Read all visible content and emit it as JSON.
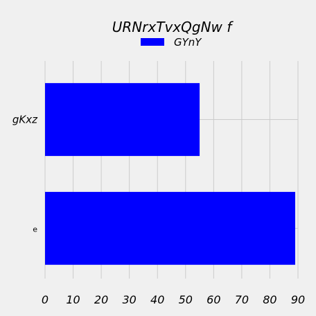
{
  "chart_data": {
    "type": "bar",
    "orientation": "horizontal",
    "title": "URNrxTvxQgNw f",
    "categories": [
      "gKxz",
      "e"
    ],
    "series": [
      {
        "name": "GYnY",
        "values": [
          55,
          89
        ],
        "color": "#0000ff"
      }
    ],
    "xlim": [
      0,
      90
    ],
    "x_ticks": [
      0,
      10,
      20,
      30,
      40,
      50,
      60,
      70,
      80,
      90
    ],
    "grid": true,
    "legend_position": "top-center",
    "background_color": "#f0f0f0",
    "grid_color": "#cbcbcb"
  }
}
